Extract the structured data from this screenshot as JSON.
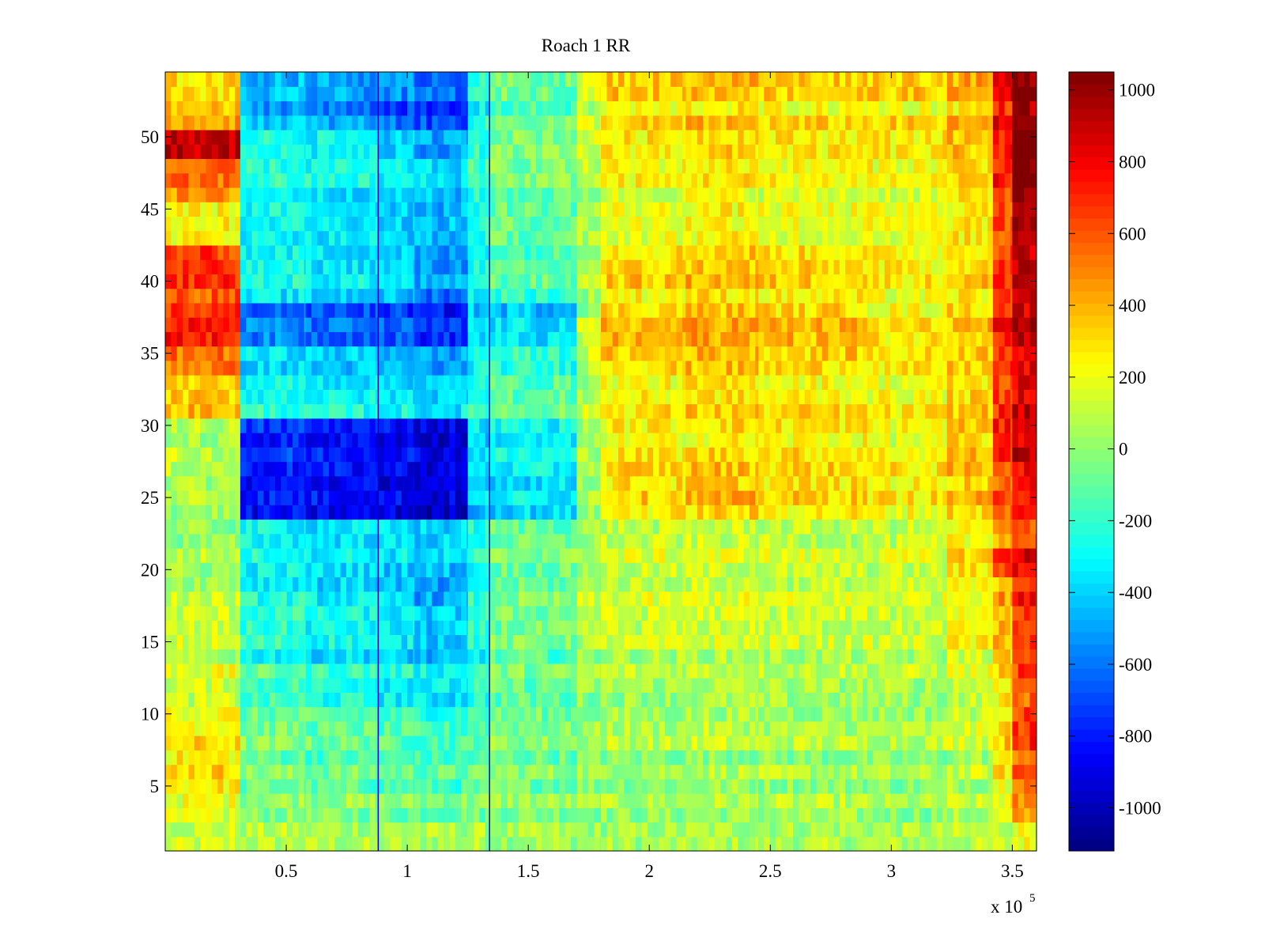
{
  "chart_data": {
    "type": "heatmap",
    "title": "Roach 1 RR",
    "xlabel": "",
    "ylabel": "",
    "x_multiplier_label": {
      "base": "x 10",
      "exponent": "5"
    },
    "xlim": [
      0,
      360000
    ],
    "ylim": [
      0.5,
      54.5
    ],
    "x_ticks": [
      {
        "value": 50000,
        "label": "0.5"
      },
      {
        "value": 100000,
        "label": "1"
      },
      {
        "value": 150000,
        "label": "1.5"
      },
      {
        "value": 200000,
        "label": "2"
      },
      {
        "value": 250000,
        "label": "2.5"
      },
      {
        "value": 300000,
        "label": "3"
      },
      {
        "value": 350000,
        "label": "3.5"
      }
    ],
    "y_ticks": [
      {
        "value": 5,
        "label": "5"
      },
      {
        "value": 10,
        "label": "10"
      },
      {
        "value": 15,
        "label": "15"
      },
      {
        "value": 20,
        "label": "20"
      },
      {
        "value": 25,
        "label": "25"
      },
      {
        "value": 30,
        "label": "30"
      },
      {
        "value": 35,
        "label": "35"
      },
      {
        "value": 40,
        "label": "40"
      },
      {
        "value": 45,
        "label": "45"
      },
      {
        "value": 50,
        "label": "50"
      }
    ],
    "colorbar": {
      "colormap": "jet",
      "clim": [
        -1120,
        1050
      ],
      "ticks": [
        {
          "value": 1000,
          "label": "1000"
        },
        {
          "value": 800,
          "label": "800"
        },
        {
          "value": 600,
          "label": "600"
        },
        {
          "value": 400,
          "label": "400"
        },
        {
          "value": 200,
          "label": "200"
        },
        {
          "value": 0,
          "label": "0"
        },
        {
          "value": -200,
          "label": "-200"
        },
        {
          "value": -400,
          "label": "-400"
        },
        {
          "value": -600,
          "label": "-600"
        },
        {
          "value": -800,
          "label": "-800"
        },
        {
          "value": -1000,
          "label": "-1000"
        }
      ]
    },
    "vertical_markers": [
      {
        "x": 88000,
        "color": "#0000cc"
      },
      {
        "x": 134000,
        "color": "#0000cc"
      }
    ],
    "rows": 54,
    "x_segments": [
      0,
      31000,
      58000,
      88000,
      103000,
      125000,
      134000,
      170000,
      180000,
      215000,
      245000,
      290000,
      323000,
      342000,
      350000,
      360000
    ],
    "segment_values_by_row_band": [
      {
        "rows": [
          1,
          2
        ],
        "values": [
          100,
          60,
          40,
          40,
          40,
          40,
          20,
          10,
          20,
          40,
          40,
          40,
          60,
          80,
          200
        ]
      },
      {
        "rows": [
          3,
          4
        ],
        "values": [
          180,
          20,
          0,
          -30,
          -30,
          -20,
          20,
          20,
          40,
          60,
          60,
          30,
          80,
          200,
          450
        ]
      },
      {
        "rows": [
          5,
          7
        ],
        "values": [
          300,
          -60,
          -100,
          -120,
          -140,
          -120,
          -40,
          0,
          20,
          40,
          20,
          0,
          80,
          250,
          600
        ]
      },
      {
        "rows": [
          8,
          10
        ],
        "values": [
          250,
          -80,
          -120,
          -180,
          -200,
          -140,
          -60,
          0,
          40,
          60,
          40,
          40,
          120,
          300,
          650
        ]
      },
      {
        "rows": [
          11,
          13
        ],
        "values": [
          150,
          -150,
          -220,
          -280,
          -320,
          -200,
          -80,
          20,
          60,
          80,
          60,
          60,
          140,
          300,
          600
        ]
      },
      {
        "rows": [
          14,
          17
        ],
        "values": [
          80,
          -250,
          -320,
          -380,
          -450,
          -260,
          -100,
          20,
          80,
          100,
          80,
          80,
          180,
          350,
          600
        ]
      },
      {
        "rows": [
          18,
          19
        ],
        "values": [
          60,
          -300,
          -380,
          -430,
          -550,
          -280,
          -100,
          40,
          100,
          120,
          100,
          100,
          200,
          400,
          700
        ]
      },
      {
        "rows": [
          20,
          21
        ],
        "values": [
          40,
          -280,
          -340,
          -380,
          -420,
          -250,
          -60,
          60,
          120,
          140,
          120,
          120,
          300,
          700,
          820
        ]
      },
      {
        "rows": [
          22,
          23
        ],
        "values": [
          40,
          -250,
          -300,
          -330,
          -350,
          -200,
          -40,
          80,
          140,
          160,
          140,
          140,
          260,
          500,
          650
        ]
      },
      {
        "rows": [
          24,
          27
        ],
        "values": [
          60,
          -820,
          -850,
          -880,
          -950,
          -400,
          -350,
          60,
          300,
          350,
          300,
          250,
          350,
          600,
          750
        ]
      },
      {
        "rows": [
          28,
          30
        ],
        "values": [
          80,
          -750,
          -800,
          -830,
          -900,
          -350,
          -300,
          40,
          250,
          300,
          280,
          220,
          350,
          700,
          900
        ]
      },
      {
        "rows": [
          31,
          33
        ],
        "values": [
          350,
          -250,
          -300,
          -330,
          -380,
          -200,
          -100,
          80,
          250,
          300,
          260,
          220,
          320,
          650,
          850
        ]
      },
      {
        "rows": [
          34,
          35
        ],
        "values": [
          500,
          -400,
          -450,
          -480,
          -550,
          -300,
          -250,
          80,
          300,
          350,
          300,
          240,
          320,
          650,
          800
        ]
      },
      {
        "rows": [
          36,
          38
        ],
        "values": [
          700,
          -600,
          -650,
          -700,
          -800,
          -400,
          -400,
          60,
          350,
          400,
          350,
          250,
          350,
          700,
          900
        ]
      },
      {
        "rows": [
          39,
          42
        ],
        "values": [
          650,
          -300,
          -350,
          -400,
          -550,
          -250,
          -150,
          80,
          300,
          350,
          300,
          240,
          320,
          650,
          900
        ]
      },
      {
        "rows": [
          43,
          45
        ],
        "values": [
          250,
          -280,
          -320,
          -380,
          -450,
          -220,
          -80,
          60,
          200,
          250,
          200,
          200,
          280,
          600,
          1000
        ]
      },
      {
        "rows": [
          46,
          48
        ],
        "values": [
          500,
          -250,
          -300,
          -350,
          -400,
          -200,
          -60,
          60,
          200,
          250,
          200,
          200,
          300,
          700,
          1050
        ]
      },
      {
        "rows": [
          49,
          50
        ],
        "values": [
          850,
          -300,
          -350,
          -450,
          -550,
          -250,
          -80,
          80,
          220,
          280,
          220,
          220,
          320,
          700,
          1050
        ]
      },
      {
        "rows": [
          51,
          52
        ],
        "values": [
          400,
          -450,
          -550,
          -650,
          -750,
          -280,
          -100,
          100,
          260,
          320,
          260,
          260,
          340,
          750,
          1000
        ]
      },
      {
        "rows": [
          53,
          54
        ],
        "values": [
          250,
          -500,
          -550,
          -600,
          -650,
          -300,
          -120,
          120,
          300,
          350,
          300,
          300,
          360,
          750,
          1000
        ]
      }
    ]
  }
}
